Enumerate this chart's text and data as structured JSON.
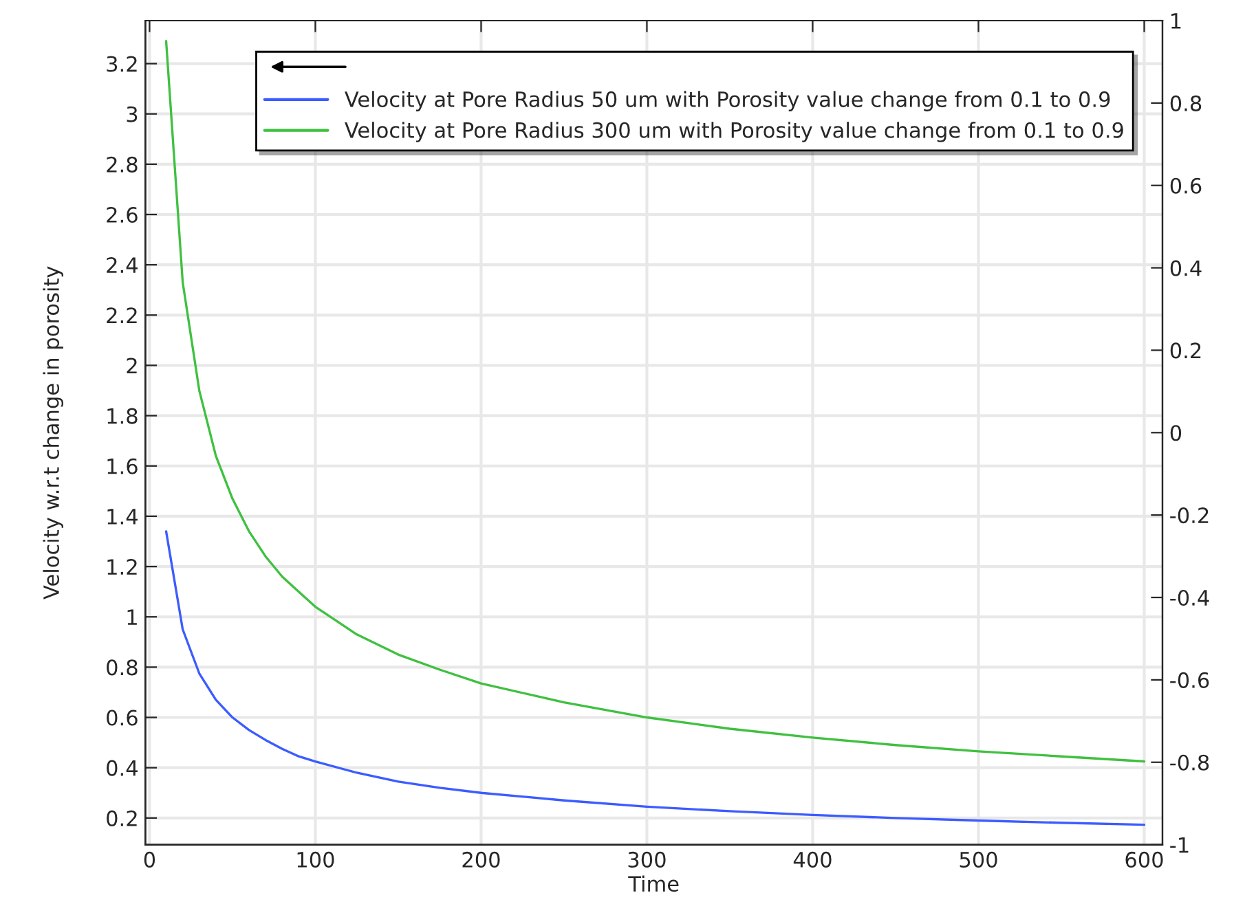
{
  "chart_data": {
    "type": "line",
    "xlabel": "Time",
    "ylabel": "Velocity w.r.t change in porosity",
    "series": [
      {
        "name": "Velocity at Pore Radius 50 um with Porosity value change from 0.1 to 0.9",
        "color": "#3c5cff",
        "x": [
          10,
          20,
          30,
          40,
          50,
          60,
          70,
          80,
          90,
          100,
          125,
          150,
          175,
          200,
          250,
          300,
          350,
          400,
          450,
          500,
          550,
          600
        ],
        "values": [
          1.34,
          0.95,
          0.775,
          0.67,
          0.6,
          0.55,
          0.51,
          0.475,
          0.445,
          0.425,
          0.38,
          0.345,
          0.32,
          0.3,
          0.27,
          0.245,
          0.227,
          0.212,
          0.2,
          0.19,
          0.181,
          0.173
        ]
      },
      {
        "name": "Velocity at Pore Radius 300 um with Porosity value change from 0.1 to 0.9",
        "color": "#40c040",
        "x": [
          10,
          20,
          30,
          40,
          50,
          60,
          70,
          80,
          90,
          100,
          125,
          150,
          175,
          200,
          250,
          300,
          350,
          400,
          450,
          500,
          550,
          600
        ],
        "values": [
          3.29,
          2.33,
          1.9,
          1.64,
          1.47,
          1.34,
          1.24,
          1.16,
          1.1,
          1.04,
          0.93,
          0.85,
          0.79,
          0.735,
          0.66,
          0.6,
          0.555,
          0.52,
          0.49,
          0.465,
          0.445,
          0.425
        ]
      }
    ],
    "xlim": [
      -2.5,
      611
    ],
    "xticks": [
      0,
      100,
      200,
      300,
      400,
      500,
      600
    ],
    "ylim": [
      0.094,
      3.371
    ],
    "yticks": [
      0.2,
      0.4,
      0.6,
      0.8,
      1,
      1.2,
      1.4,
      1.6,
      1.8,
      2,
      2.2,
      2.4,
      2.6,
      2.8,
      3,
      3.2
    ],
    "y2lim": [
      -1,
      1
    ],
    "y2ticks": [
      -1,
      -0.8,
      -0.6,
      -0.4,
      -0.2,
      0,
      0.2,
      0.4,
      0.6,
      0.8,
      1
    ],
    "grid": true,
    "legend": "top",
    "line_style": "solid",
    "marker": "none"
  }
}
